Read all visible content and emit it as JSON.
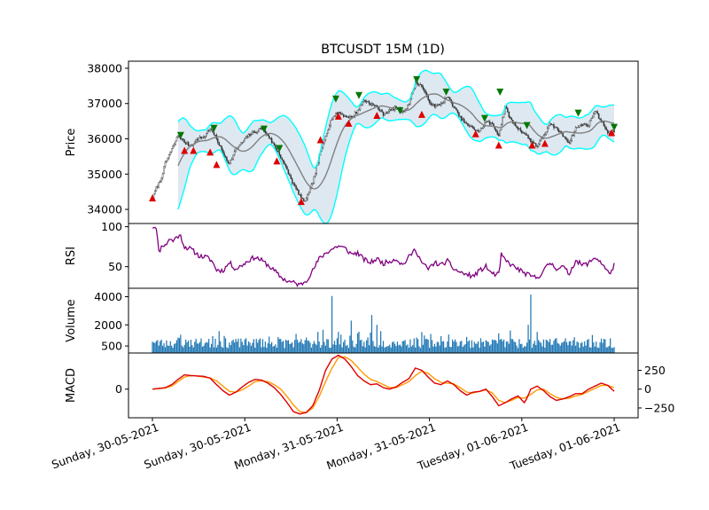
{
  "title": "BTCUSDT 15M (1D)",
  "colors": {
    "candle": "#333333",
    "bb_band": "#00ffff",
    "bb_fill": "#c8d8e8",
    "mid_line": "#808080",
    "buy_marker": "#dd0000",
    "sell_marker": "#007700",
    "rsi_line": "#800080",
    "volume_bar": "#1f77b4",
    "macd_line": "#dd0000",
    "signal_line": "#ff9900"
  },
  "x_ticks": [
    "Sunday, 30-05-2021",
    "Sunday, 30-05-2021",
    "Monday, 31-05-2021",
    "Monday, 31-05-2021",
    "Tuesday, 01-06-2021",
    "Tuesday, 01-06-2021"
  ],
  "chart_data": [
    {
      "id": "price",
      "type": "candlestick",
      "ylabel": "Price",
      "ylim": [
        33600,
        38200
      ],
      "yticks": [
        34000,
        35000,
        36000,
        37000,
        38000
      ],
      "price_path": [
        [
          0,
          34300
        ],
        [
          3,
          34600
        ],
        [
          6,
          34800
        ],
        [
          10,
          35300
        ],
        [
          15,
          35700
        ],
        [
          20,
          36100
        ],
        [
          25,
          35900
        ],
        [
          30,
          35800
        ],
        [
          35,
          36000
        ],
        [
          40,
          36050
        ],
        [
          45,
          36300
        ],
        [
          50,
          36000
        ],
        [
          55,
          35600
        ],
        [
          60,
          35300
        ],
        [
          65,
          35700
        ],
        [
          70,
          35900
        ],
        [
          75,
          36100
        ],
        [
          80,
          36200
        ],
        [
          85,
          36300
        ],
        [
          90,
          36100
        ],
        [
          95,
          35800
        ],
        [
          100,
          35500
        ],
        [
          105,
          35100
        ],
        [
          110,
          34700
        ],
        [
          115,
          34400
        ],
        [
          118,
          34200
        ],
        [
          122,
          34450
        ],
        [
          126,
          34900
        ],
        [
          130,
          35500
        ],
        [
          135,
          36100
        ],
        [
          140,
          36600
        ],
        [
          145,
          36750
        ],
        [
          150,
          36650
        ],
        [
          155,
          36600
        ],
        [
          160,
          36800
        ],
        [
          165,
          37100
        ],
        [
          170,
          37000
        ],
        [
          175,
          36900
        ],
        [
          180,
          36700
        ],
        [
          185,
          36800
        ],
        [
          190,
          36900
        ],
        [
          195,
          36750
        ],
        [
          200,
          37000
        ],
        [
          205,
          37600
        ],
        [
          210,
          37500
        ],
        [
          215,
          37100
        ],
        [
          220,
          36900
        ],
        [
          225,
          37000
        ],
        [
          230,
          37200
        ],
        [
          235,
          36900
        ],
        [
          240,
          36600
        ],
        [
          245,
          36400
        ],
        [
          250,
          36300
        ],
        [
          255,
          36200
        ],
        [
          260,
          36500
        ],
        [
          265,
          36400
        ],
        [
          270,
          36100
        ],
        [
          275,
          36900
        ],
        [
          280,
          36500
        ],
        [
          285,
          36300
        ],
        [
          290,
          36150
        ],
        [
          295,
          35950
        ],
        [
          300,
          35800
        ],
        [
          305,
          36100
        ],
        [
          310,
          36400
        ],
        [
          315,
          36300
        ],
        [
          320,
          36100
        ],
        [
          325,
          35900
        ],
        [
          330,
          36300
        ],
        [
          335,
          36400
        ],
        [
          340,
          36400
        ],
        [
          345,
          36800
        ],
        [
          350,
          36500
        ],
        [
          355,
          36200
        ],
        [
          360,
          36200
        ]
      ],
      "bollinger_start": 20,
      "buy_signals": [
        [
          0,
          34300
        ],
        [
          25,
          35650
        ],
        [
          32,
          35650
        ],
        [
          45,
          35600
        ],
        [
          50,
          35250
        ],
        [
          97,
          35350
        ],
        [
          116,
          34200
        ],
        [
          131,
          35950
        ],
        [
          145,
          36620
        ],
        [
          153,
          36420
        ],
        [
          175,
          36640
        ],
        [
          210,
          36670
        ],
        [
          252,
          36120
        ],
        [
          270,
          35800
        ],
        [
          296,
          35800
        ],
        [
          306,
          35850
        ],
        [
          358,
          36150
        ]
      ],
      "sell_signals": [
        [
          22,
          36120
        ],
        [
          48,
          36320
        ],
        [
          87,
          36300
        ],
        [
          99,
          35750
        ],
        [
          143,
          37150
        ],
        [
          161,
          37250
        ],
        [
          193,
          36820
        ],
        [
          206,
          37700
        ],
        [
          229,
          37350
        ],
        [
          259,
          36600
        ],
        [
          271,
          37350
        ],
        [
          292,
          36400
        ],
        [
          332,
          36750
        ],
        [
          360,
          36350
        ]
      ]
    },
    {
      "id": "rsi",
      "type": "line",
      "ylabel": "RSI",
      "ylim": [
        23,
        104
      ],
      "yticks": [
        50,
        100
      ],
      "path": [
        [
          0,
          100
        ],
        [
          3,
          100
        ],
        [
          5,
          68
        ],
        [
          8,
          78
        ],
        [
          10,
          76
        ],
        [
          13,
          85
        ],
        [
          16,
          82
        ],
        [
          19,
          88
        ],
        [
          22,
          88
        ],
        [
          25,
          75
        ],
        [
          30,
          72
        ],
        [
          33,
          68
        ],
        [
          37,
          63
        ],
        [
          42,
          62
        ],
        [
          46,
          58
        ],
        [
          50,
          46
        ],
        [
          55,
          45
        ],
        [
          60,
          55
        ],
        [
          65,
          47
        ],
        [
          70,
          52
        ],
        [
          75,
          58
        ],
        [
          80,
          62
        ],
        [
          85,
          58
        ],
        [
          90,
          52
        ],
        [
          95,
          45
        ],
        [
          100,
          37
        ],
        [
          105,
          32
        ],
        [
          110,
          30
        ],
        [
          115,
          27
        ],
        [
          120,
          33
        ],
        [
          125,
          45
        ],
        [
          130,
          60
        ],
        [
          135,
          67
        ],
        [
          140,
          72
        ],
        [
          145,
          76
        ],
        [
          150,
          73
        ],
        [
          155,
          66
        ],
        [
          160,
          67
        ],
        [
          165,
          59
        ],
        [
          170,
          55
        ],
        [
          175,
          60
        ],
        [
          180,
          54
        ],
        [
          185,
          57
        ],
        [
          190,
          60
        ],
        [
          195,
          52
        ],
        [
          200,
          62
        ],
        [
          205,
          72
        ],
        [
          210,
          55
        ],
        [
          215,
          47
        ],
        [
          220,
          55
        ],
        [
          225,
          52
        ],
        [
          230,
          57
        ],
        [
          235,
          47
        ],
        [
          240,
          43
        ],
        [
          245,
          40
        ],
        [
          250,
          38
        ],
        [
          255,
          45
        ],
        [
          260,
          50
        ],
        [
          265,
          41
        ],
        [
          270,
          40
        ],
        [
          272,
          65
        ],
        [
          275,
          58
        ],
        [
          280,
          52
        ],
        [
          285,
          47
        ],
        [
          290,
          42
        ],
        [
          295,
          38
        ],
        [
          300,
          36
        ],
        [
          305,
          45
        ],
        [
          310,
          55
        ],
        [
          315,
          48
        ],
        [
          320,
          50
        ],
        [
          325,
          41
        ],
        [
          330,
          58
        ],
        [
          335,
          52
        ],
        [
          340,
          54
        ],
        [
          345,
          62
        ],
        [
          350,
          55
        ],
        [
          355,
          43
        ],
        [
          358,
          44
        ],
        [
          360,
          52
        ]
      ]
    },
    {
      "id": "volume",
      "type": "bar",
      "ylabel": "Volume",
      "ylim": [
        0,
        4600
      ],
      "yticks": [
        500,
        2000,
        4000
      ],
      "n_bars": 361,
      "peaks": [
        [
          0,
          800
        ],
        [
          20,
          1100
        ],
        [
          22,
          1300
        ],
        [
          47,
          1200
        ],
        [
          52,
          1550
        ],
        [
          100,
          1000
        ],
        [
          120,
          1100
        ],
        [
          129,
          1500
        ],
        [
          133,
          1650
        ],
        [
          140,
          4050
        ],
        [
          145,
          1500
        ],
        [
          155,
          2300
        ],
        [
          160,
          1400
        ],
        [
          170,
          1450
        ],
        [
          171,
          2700
        ],
        [
          175,
          2000
        ],
        [
          178,
          1550
        ],
        [
          206,
          1100
        ],
        [
          212,
          1250
        ],
        [
          225,
          1200
        ],
        [
          270,
          1400
        ],
        [
          279,
          1600
        ],
        [
          293,
          2000
        ],
        [
          295,
          4150
        ],
        [
          300,
          1500
        ],
        [
          310,
          1000
        ]
      ]
    },
    {
      "id": "macd",
      "type": "line",
      "ylabel": "MACD",
      "ylim": [
        -380,
        480
      ],
      "yticks_left": [
        0
      ],
      "yticks_right": [
        -250,
        0,
        250
      ],
      "macd_path": [
        [
          0,
          0
        ],
        [
          10,
          20
        ],
        [
          15,
          60
        ],
        [
          20,
          130
        ],
        [
          25,
          190
        ],
        [
          30,
          180
        ],
        [
          35,
          175
        ],
        [
          40,
          170
        ],
        [
          45,
          145
        ],
        [
          50,
          60
        ],
        [
          55,
          -20
        ],
        [
          60,
          -80
        ],
        [
          65,
          -40
        ],
        [
          70,
          30
        ],
        [
          75,
          90
        ],
        [
          80,
          130
        ],
        [
          85,
          120
        ],
        [
          90,
          80
        ],
        [
          95,
          20
        ],
        [
          100,
          -70
        ],
        [
          105,
          -180
        ],
        [
          110,
          -300
        ],
        [
          115,
          -330
        ],
        [
          120,
          -310
        ],
        [
          125,
          -220
        ],
        [
          130,
          -20
        ],
        [
          135,
          250
        ],
        [
          140,
          400
        ],
        [
          145,
          450
        ],
        [
          150,
          400
        ],
        [
          155,
          300
        ],
        [
          160,
          180
        ],
        [
          165,
          110
        ],
        [
          170,
          60
        ],
        [
          175,
          70
        ],
        [
          180,
          20
        ],
        [
          185,
          0
        ],
        [
          190,
          30
        ],
        [
          195,
          90
        ],
        [
          200,
          140
        ],
        [
          205,
          280
        ],
        [
          210,
          250
        ],
        [
          215,
          160
        ],
        [
          220,
          80
        ],
        [
          225,
          60
        ],
        [
          230,
          110
        ],
        [
          235,
          60
        ],
        [
          240,
          -20
        ],
        [
          245,
          -80
        ],
        [
          250,
          -40
        ],
        [
          255,
          -30
        ],
        [
          260,
          0
        ],
        [
          265,
          -100
        ],
        [
          270,
          -220
        ],
        [
          275,
          -180
        ],
        [
          280,
          -130
        ],
        [
          285,
          -90
        ],
        [
          290,
          -180
        ],
        [
          292,
          -120
        ],
        [
          295,
          0
        ],
        [
          300,
          40
        ],
        [
          305,
          -20
        ],
        [
          310,
          -100
        ],
        [
          315,
          -150
        ],
        [
          320,
          -130
        ],
        [
          325,
          -100
        ],
        [
          330,
          -60
        ],
        [
          335,
          -60
        ],
        [
          340,
          0
        ],
        [
          345,
          40
        ],
        [
          350,
          80
        ],
        [
          355,
          50
        ],
        [
          360,
          -30
        ]
      ],
      "signal_path": [
        [
          0,
          0
        ],
        [
          10,
          15
        ],
        [
          15,
          40
        ],
        [
          20,
          100
        ],
        [
          25,
          160
        ],
        [
          30,
          180
        ],
        [
          35,
          175
        ],
        [
          40,
          160
        ],
        [
          45,
          150
        ],
        [
          50,
          110
        ],
        [
          55,
          40
        ],
        [
          60,
          -30
        ],
        [
          65,
          -40
        ],
        [
          70,
          -10
        ],
        [
          75,
          40
        ],
        [
          80,
          100
        ],
        [
          85,
          110
        ],
        [
          90,
          100
        ],
        [
          95,
          60
        ],
        [
          100,
          0
        ],
        [
          105,
          -100
        ],
        [
          110,
          -210
        ],
        [
          115,
          -300
        ],
        [
          120,
          -310
        ],
        [
          125,
          -250
        ],
        [
          130,
          -100
        ],
        [
          135,
          100
        ],
        [
          140,
          280
        ],
        [
          145,
          420
        ],
        [
          150,
          430
        ],
        [
          155,
          380
        ],
        [
          160,
          290
        ],
        [
          165,
          200
        ],
        [
          170,
          130
        ],
        [
          175,
          100
        ],
        [
          180,
          60
        ],
        [
          185,
          20
        ],
        [
          190,
          20
        ],
        [
          195,
          60
        ],
        [
          200,
          100
        ],
        [
          205,
          180
        ],
        [
          210,
          240
        ],
        [
          215,
          210
        ],
        [
          220,
          140
        ],
        [
          225,
          90
        ],
        [
          230,
          80
        ],
        [
          235,
          70
        ],
        [
          240,
          20
        ],
        [
          245,
          -40
        ],
        [
          250,
          -50
        ],
        [
          255,
          -30
        ],
        [
          260,
          -10
        ],
        [
          265,
          -50
        ],
        [
          270,
          -150
        ],
        [
          275,
          -180
        ],
        [
          280,
          -150
        ],
        [
          285,
          -110
        ],
        [
          290,
          -120
        ],
        [
          295,
          -70
        ],
        [
          300,
          -10
        ],
        [
          305,
          0
        ],
        [
          310,
          -60
        ],
        [
          315,
          -110
        ],
        [
          320,
          -130
        ],
        [
          325,
          -120
        ],
        [
          330,
          -90
        ],
        [
          335,
          -70
        ],
        [
          340,
          -30
        ],
        [
          345,
          10
        ],
        [
          350,
          50
        ],
        [
          355,
          50
        ],
        [
          360,
          20
        ]
      ]
    }
  ]
}
